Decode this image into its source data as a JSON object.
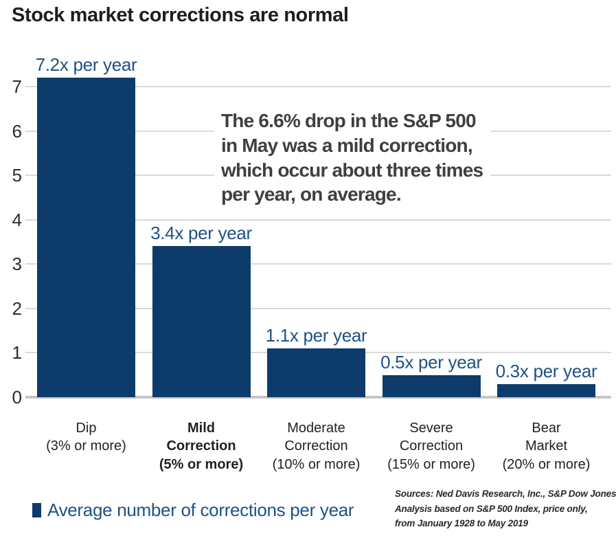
{
  "chart_data": {
    "type": "bar",
    "title": "Stock market corrections are normal",
    "categories": [
      "Dip\n(3% or more)",
      "Mild\nCorrection\n(5% or more)",
      "Moderate\nCorrection\n(10% or more)",
      "Severe\nCorrection\n(15% or more)",
      "Bear\nMarket\n(20% or more)"
    ],
    "values": [
      7.2,
      3.4,
      1.1,
      0.5,
      0.3
    ],
    "bar_value_labels": [
      "7.2x per year",
      "3.4x per year",
      "1.1x per year",
      "0.5x per year",
      "0.3x per year"
    ],
    "bold_category_index": 1,
    "xlabel": "",
    "ylabel": "",
    "ylim": [
      0,
      7
    ],
    "yticks": [
      0,
      1,
      2,
      3,
      4,
      5,
      6,
      7
    ],
    "grid": true,
    "legend_label": "Average number of corrections per year",
    "legend_position": "bottom-left",
    "colors": {
      "bar": "#0d3c6c",
      "value_label": "#1f5185",
      "gridline": "#d9d9d9",
      "axis_line": "#c6c6c6",
      "title": "#1d1d1f",
      "annotation": "#3f3f41",
      "category_label": "#231f20"
    }
  },
  "annotation": {
    "text": "The 6.6% drop in the S&P 500\nin May was a mild correction,\nwhich occur about three times\nper year, on average."
  },
  "sources": {
    "text": "Sources: Ned Davis Research, Inc., S&P Dow Jones Indices\nAnalysis based on S&P 500 Index, price only,\nfrom January 1928 to May 2019"
  }
}
